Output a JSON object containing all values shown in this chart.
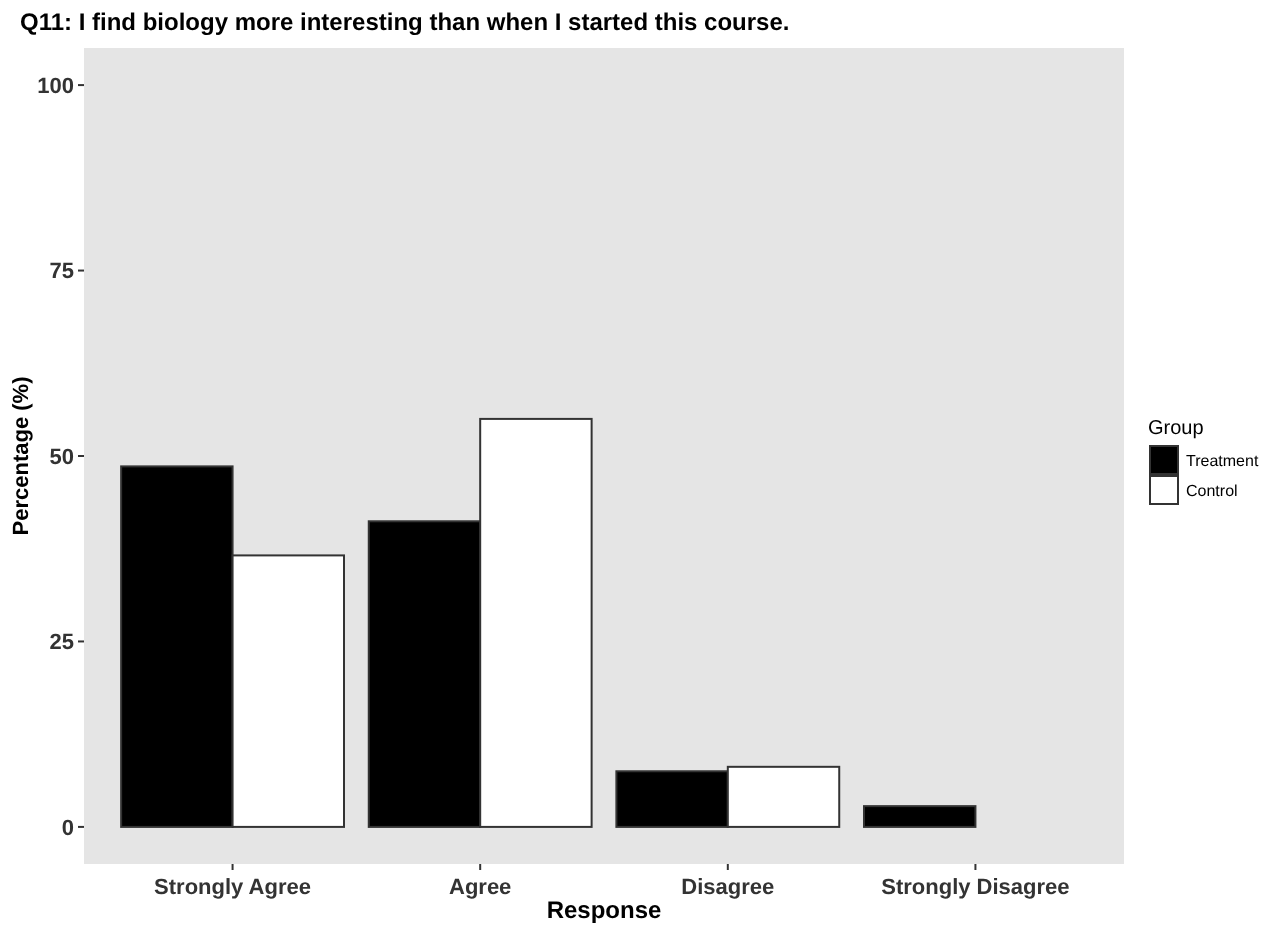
{
  "chart_data": {
    "type": "bar",
    "title": "Q11: I find biology more interesting than when I started this course.",
    "xlabel": "Response",
    "ylabel": "Percentage (%)",
    "legend_title": "Group",
    "categories": [
      "Strongly Agree",
      "Agree",
      "Disagree",
      "Strongly Disagree"
    ],
    "series": [
      {
        "name": "Treatment",
        "color": "#000000",
        "values": [
          48.6,
          41.2,
          7.5,
          2.8
        ]
      },
      {
        "name": "Control",
        "color": "#ffffff",
        "values": [
          36.6,
          55.0,
          8.1,
          0
        ]
      }
    ],
    "ylim": [
      -5,
      105
    ],
    "yticks": [
      0,
      25,
      50,
      75,
      100
    ],
    "grid": false,
    "legend": "right"
  }
}
